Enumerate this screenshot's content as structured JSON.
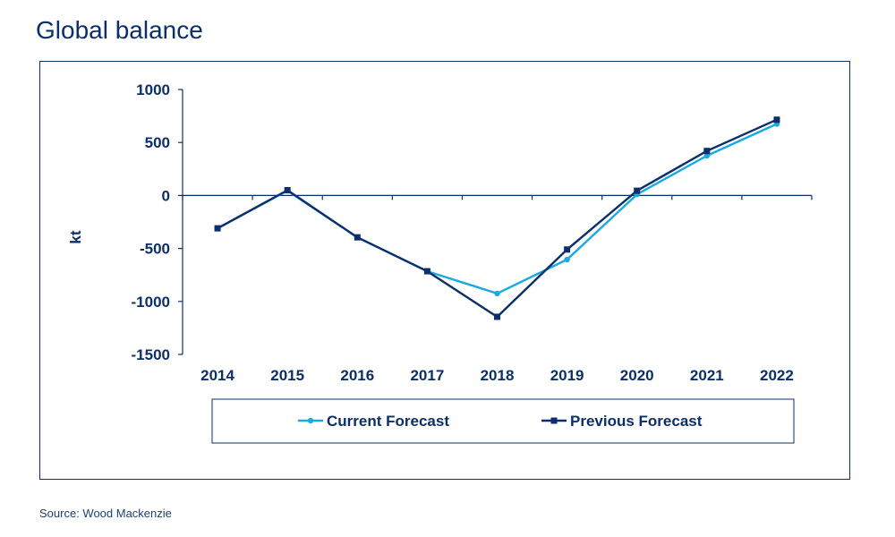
{
  "page": {
    "title": "Global balance",
    "source": "Source: Wood Mackenzie"
  },
  "colors": {
    "current": "#1ba9e1",
    "previous": "#0b2f6b",
    "axis": "#0b2f6b",
    "text": "#0b2f6b"
  },
  "chart_data": {
    "type": "line",
    "title": "",
    "xlabel": "",
    "ylabel": "kt",
    "ylim": [
      -1500,
      1000
    ],
    "yticks": [
      1000,
      500,
      0,
      -500,
      -1000,
      -1500
    ],
    "categories": [
      "2014",
      "2015",
      "2016",
      "2017",
      "2018",
      "2019",
      "2020",
      "2021",
      "2022"
    ],
    "grid": false,
    "legend_placement": "bottom",
    "series": [
      {
        "name": "Current Forecast",
        "values": [
          -310,
          45,
          -395,
          -715,
          -925,
          -605,
          10,
          375,
          675
        ],
        "marker": "circle",
        "color": "#1ba9e1"
      },
      {
        "name": "Previous Forecast",
        "values": [
          -310,
          50,
          -395,
          -715,
          -1145,
          -510,
          45,
          420,
          715
        ],
        "marker": "square",
        "color": "#0b2f6b"
      }
    ]
  }
}
